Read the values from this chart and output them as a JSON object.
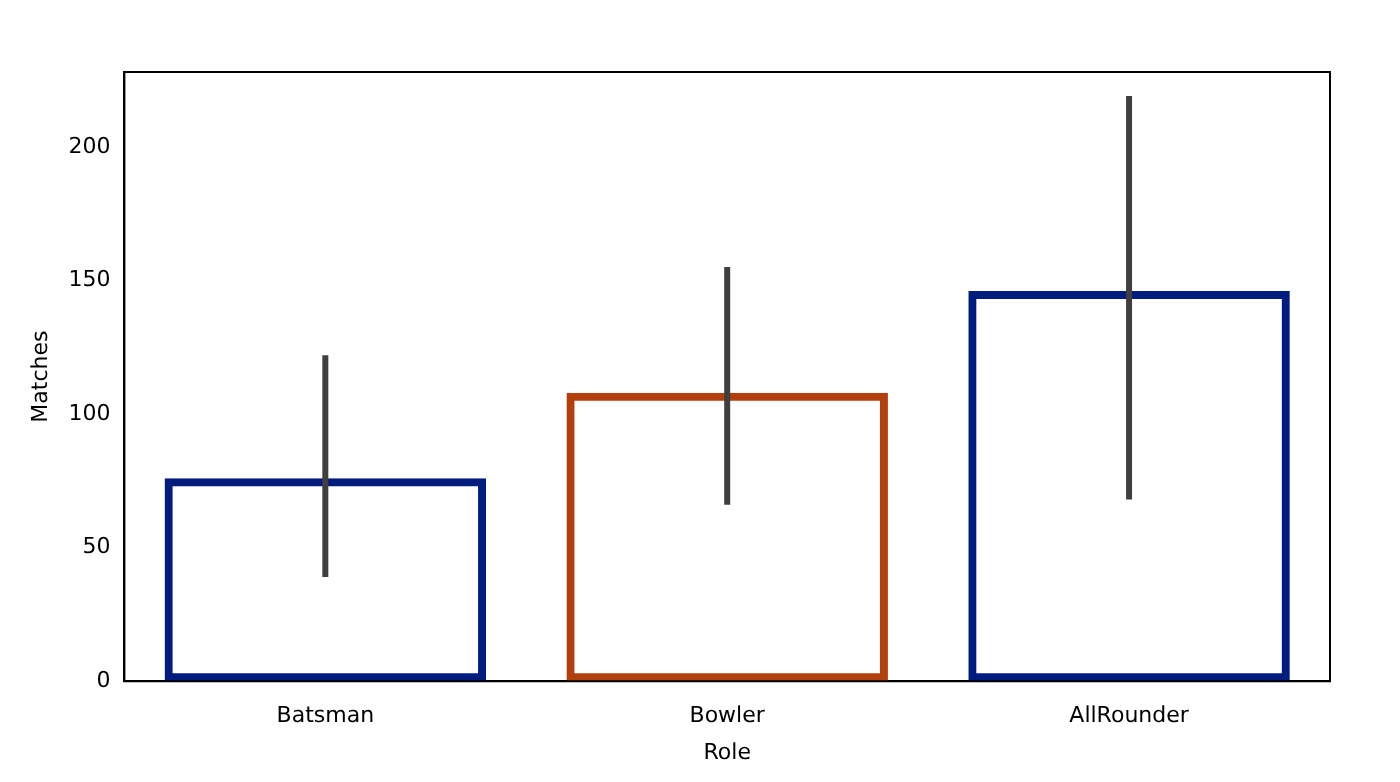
{
  "chart_data": {
    "type": "bar",
    "xlabel": "Role",
    "ylabel": "Matches",
    "categories": [
      "Batsman",
      "Bowler",
      "AllRounder"
    ],
    "values": [
      76,
      108,
      146
    ],
    "colors": [
      "#001c7f",
      "#b1400d",
      "#001c7f"
    ],
    "errors": [
      [
        39,
        122
      ],
      [
        66,
        155
      ],
      [
        68,
        219
      ]
    ],
    "ylim": [
      0,
      228
    ],
    "yticks": [
      0,
      50,
      100,
      150,
      200
    ],
    "grid": false,
    "legend": false
  }
}
